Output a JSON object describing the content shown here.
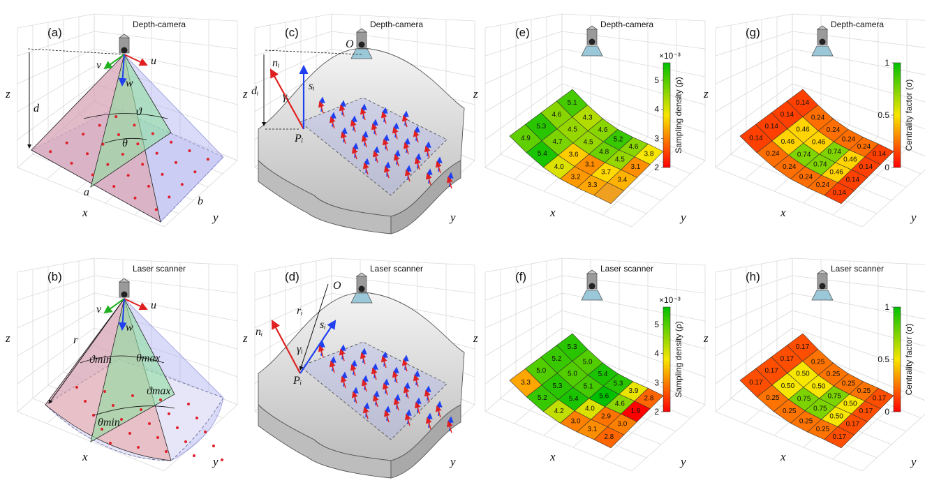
{
  "panels": {
    "a": {
      "label": "(a)",
      "device": "Depth-camera",
      "axes": {
        "x": "x",
        "y": "y",
        "z": "z"
      },
      "symbols": {
        "d": "d",
        "v": "v",
        "u": "u",
        "w": "w",
        "theta1": "ϑ",
        "theta2": "θ",
        "a": "a",
        "b": "b"
      }
    },
    "b": {
      "label": "(b)",
      "device": "Laser scanner",
      "axes": {
        "x": "x",
        "y": "y",
        "z": "z"
      },
      "symbols": {
        "r": "r",
        "v": "v",
        "u": "u",
        "w": "w",
        "tmin1": "ϑmin",
        "tmax1": "θmax",
        "tmax2": "ϑmax",
        "tmin2": "θmin"
      }
    },
    "c": {
      "label": "(c)",
      "device": "Depth-camera",
      "axes": {
        "x": "x",
        "y": "y",
        "z": "z"
      },
      "symbols": {
        "O": "O",
        "n": "nᵢ",
        "gamma": "γᵢ",
        "s": "sᵢ",
        "d": "dᵢ",
        "P": "Pᵢ"
      }
    },
    "d": {
      "label": "(d)",
      "device": "Laser scanner",
      "axes": {
        "x": "x",
        "y": "y",
        "z": "z"
      },
      "symbols": {
        "O": "O",
        "r": "rᵢ",
        "n": "nᵢ",
        "gamma": "γᵢ",
        "s": "sᵢ",
        "P": "Pᵢ"
      }
    },
    "e": {
      "label": "(e)",
      "device": "Depth-camera",
      "axes": {
        "x": "x",
        "y": "y",
        "z": "z"
      },
      "colorbar": {
        "title": "Sampling density (ρ)",
        "multiplier": "×10⁻³",
        "ticks": [
          "2",
          "3",
          "4",
          "5"
        ],
        "range": [
          2,
          5.6
        ]
      },
      "cells": [
        [
          "5.1",
          "4.3",
          "4.6",
          "5.2",
          "4.6",
          "3.8"
        ],
        [
          "4.6",
          "4.5",
          "4.5",
          "4.8",
          "4.5",
          "3.1"
        ],
        [
          "5.3",
          "4.7",
          "3.6",
          "3.1",
          "3.7",
          "3.4"
        ],
        [
          "4.9",
          "5.4",
          "4.0",
          "3.2",
          "3.3",
          ""
        ]
      ]
    },
    "f": {
      "label": "(f)",
      "device": "Laser scanner",
      "axes": {
        "x": "x",
        "y": "y",
        "z": "z"
      },
      "colorbar": {
        "title": "Sampling density (ρ)",
        "multiplier": "×10⁻³",
        "ticks": [
          "2",
          "3",
          "4",
          "5"
        ],
        "range": [
          2,
          5.6
        ]
      },
      "cells": [
        [
          "5.3",
          "5.0",
          "5.4",
          "5.3",
          "3.9",
          "2.8"
        ],
        [
          "5.2",
          "5.0",
          "5.1",
          "5.6",
          "4.6",
          "1.9"
        ],
        [
          "5.0",
          "5.3",
          "5.4",
          "4.0",
          "2.9",
          "3.0"
        ],
        [
          "3.3",
          "5.2",
          "4.2",
          "3.0",
          "3.1",
          "2.8"
        ]
      ]
    },
    "g": {
      "label": "(g)",
      "device": "Depth-camera",
      "axes": {
        "x": "x",
        "y": "y",
        "z": "z"
      },
      "colorbar": {
        "title": "Centrality factor (σ)",
        "ticks": [
          "0",
          "0.5",
          "1"
        ],
        "range": [
          0,
          1
        ]
      },
      "cells": [
        [
          "0.14",
          "0.24",
          "0.24",
          "0.24",
          "0.24",
          "0.14"
        ],
        [
          "0.14",
          "0.46",
          "0.46",
          "0.74",
          "0.46",
          "0.14"
        ],
        [
          "0.14",
          "0.46",
          "0.74",
          "0.74",
          "0.46",
          "0.14"
        ],
        [
          "0.14",
          "0.24",
          "0.24",
          "0.24",
          "0.24",
          "0.14"
        ]
      ]
    },
    "h": {
      "label": "(h)",
      "device": "Laser scanner",
      "axes": {
        "x": "x",
        "y": "y",
        "z": "z"
      },
      "colorbar": {
        "title": "Centrality factor (σ)",
        "ticks": [
          "0",
          "0.5",
          "1"
        ],
        "range": [
          0,
          1
        ]
      },
      "cells": [
        [
          "0.17",
          "0.25",
          "0.25",
          "0.25",
          "0.25",
          "0.17"
        ],
        [
          "0.17",
          "0.50",
          "0.50",
          "0.75",
          "0.50",
          "0.17"
        ],
        [
          "0.17",
          "0.50",
          "0.75",
          "0.75",
          "0.50",
          "0.17"
        ],
        [
          "0.17",
          "0.25",
          "0.25",
          "0.25",
          "0.25",
          "0.17"
        ]
      ]
    }
  },
  "colors": {
    "red_dot": "#e0202a",
    "cone_blue": "#aab0ef",
    "cone_red": "#e8a0a0",
    "cone_green": "#90e0a0",
    "arrow_blue": "#2040f0",
    "arrow_red": "#e02020",
    "arrow_green": "#20b020",
    "surface": "#cfcfcf"
  }
}
